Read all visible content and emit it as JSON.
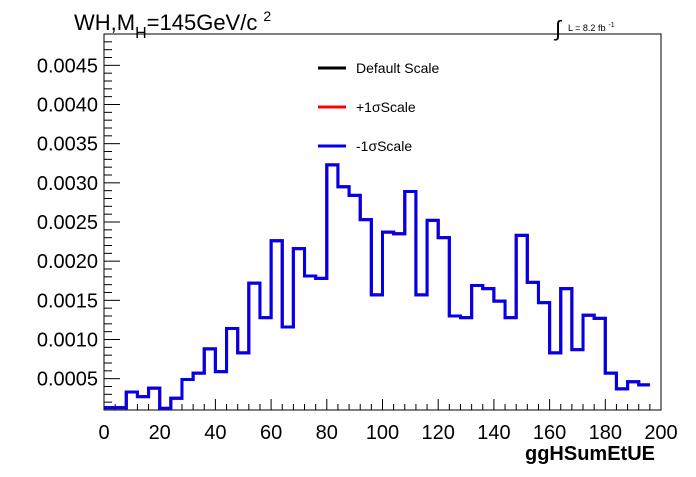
{
  "chart_data": {
    "type": "line",
    "title_main": "WH,M",
    "title_sub": "H",
    "title_rest": "=145GeV/c",
    "title_sup": "2",
    "lumi_main": "L = 8.2 fb",
    "lumi_sup": "-1",
    "xlabel": "ggHSumEtUE",
    "ylabel": "",
    "xlim": [
      0,
      200
    ],
    "ylim": [
      0.0001,
      0.0049
    ],
    "xticks": [
      0,
      20,
      40,
      60,
      80,
      100,
      120,
      140,
      160,
      180,
      200
    ],
    "xtick_labels": [
      "0",
      "20",
      "40",
      "60",
      "80",
      "100",
      "120",
      "140",
      "160",
      "180",
      "200"
    ],
    "yticks": [
      0.0005,
      0.001,
      0.0015,
      0.002,
      0.0025,
      0.003,
      0.0035,
      0.004,
      0.0045
    ],
    "ytick_labels": [
      "0.0005",
      "0.0010",
      "0.0015",
      "0.0020",
      "0.0025",
      "0.0030",
      "0.0035",
      "0.0040",
      "0.0045"
    ],
    "grid": false,
    "legend_position": "top-right",
    "bin_edges_start": 0,
    "bin_width": 4,
    "series": [
      {
        "name": "Default Scale",
        "color": "#000000",
        "values": [
          0.00013,
          0.00013,
          0.00033,
          0.00027,
          0.00038,
          0.00012,
          0.00025,
          0.00049,
          0.00057,
          0.00088,
          0.00059,
          0.00114,
          0.00083,
          0.00172,
          0.00128,
          0.00226,
          0.00116,
          0.00216,
          0.00181,
          0.00178,
          0.00323,
          0.00295,
          0.00284,
          0.00253,
          0.00157,
          0.00237,
          0.00235,
          0.00289,
          0.00157,
          0.00252,
          0.0023,
          0.0013,
          0.00128,
          0.00169,
          0.00165,
          0.00149,
          0.00128,
          0.00233,
          0.00173,
          0.00147,
          0.00083,
          0.00165,
          0.00087,
          0.00131,
          0.00127,
          0.00057,
          0.00037,
          0.00046,
          0.00042
        ]
      },
      {
        "name": "+1σScale",
        "color": "#ff0000",
        "values": [
          0.00013,
          0.00013,
          0.00033,
          0.00027,
          0.00038,
          0.00012,
          0.00025,
          0.00049,
          0.00057,
          0.00088,
          0.00059,
          0.00114,
          0.00083,
          0.00172,
          0.00128,
          0.00226,
          0.00116,
          0.00216,
          0.00181,
          0.00178,
          0.00323,
          0.00295,
          0.00284,
          0.00253,
          0.00157,
          0.00237,
          0.00235,
          0.00289,
          0.00157,
          0.00252,
          0.0023,
          0.0013,
          0.00128,
          0.00169,
          0.00165,
          0.00149,
          0.00128,
          0.00233,
          0.00173,
          0.00147,
          0.00083,
          0.00165,
          0.00087,
          0.00131,
          0.00127,
          0.00057,
          0.00037,
          0.00046,
          0.00042
        ]
      },
      {
        "name": "-1σScale",
        "color": "#0000ee",
        "values": [
          0.00013,
          0.00013,
          0.00033,
          0.00027,
          0.00038,
          0.00012,
          0.00025,
          0.00049,
          0.00057,
          0.00088,
          0.00059,
          0.00114,
          0.00083,
          0.00172,
          0.00128,
          0.00226,
          0.00116,
          0.00216,
          0.00181,
          0.00178,
          0.00323,
          0.00295,
          0.00284,
          0.00253,
          0.00157,
          0.00237,
          0.00235,
          0.00289,
          0.00157,
          0.00252,
          0.0023,
          0.0013,
          0.00128,
          0.00169,
          0.00165,
          0.00149,
          0.00128,
          0.00233,
          0.00173,
          0.00147,
          0.00083,
          0.00165,
          0.00087,
          0.00131,
          0.00127,
          0.00057,
          0.00037,
          0.00046,
          0.00042
        ]
      }
    ]
  }
}
